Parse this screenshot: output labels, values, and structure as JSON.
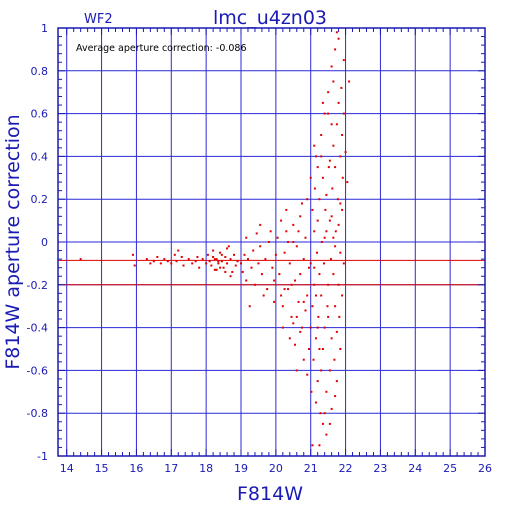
{
  "colors": {
    "axis": "#1a1ab4",
    "grid": "#2a2ad8",
    "points": "#e00000",
    "average_line": "#e00000",
    "annotation": "#000000"
  },
  "chart_data": {
    "type": "scatter",
    "title": "lmc_u4zn03",
    "subtitle": "WF2",
    "xlabel": "F814W",
    "ylabel": "F814W aperture correction",
    "annotation": "Average aperture correction:  -0.086",
    "xlim": [
      13.75,
      26
    ],
    "ylim": [
      -1,
      1
    ],
    "grid": true,
    "x_ticks": [
      "14",
      "15",
      "16",
      "17",
      "18",
      "19",
      "20",
      "21",
      "22",
      "23",
      "24",
      "25",
      "26"
    ],
    "y_ticks": [
      "1",
      "0.8",
      "0.6",
      "0.4",
      "0.2",
      "0",
      "-0.2",
      "-0.4",
      "-0.6",
      "-0.8",
      "-1"
    ],
    "reference_lines": [
      {
        "orientation": "horizontal",
        "y": -0.086
      },
      {
        "orientation": "horizontal",
        "y": -0.2
      }
    ],
    "series": [
      {
        "points": [
          [
            14.4,
            -0.08
          ],
          [
            15.9,
            -0.06
          ],
          [
            15.95,
            -0.11
          ],
          [
            16.3,
            -0.08
          ],
          [
            16.4,
            -0.1
          ],
          [
            16.5,
            -0.09
          ],
          [
            16.6,
            -0.07
          ],
          [
            16.7,
            -0.1
          ],
          [
            16.8,
            -0.08
          ],
          [
            16.9,
            -0.09
          ],
          [
            17.0,
            -0.1
          ],
          [
            17.1,
            -0.06
          ],
          [
            17.15,
            -0.09
          ],
          [
            17.2,
            -0.04
          ],
          [
            17.3,
            -0.07
          ],
          [
            17.35,
            -0.11
          ],
          [
            17.5,
            -0.08
          ],
          [
            17.6,
            -0.1
          ],
          [
            17.7,
            -0.09
          ],
          [
            17.75,
            -0.07
          ],
          [
            17.8,
            -0.12
          ],
          [
            17.9,
            -0.08
          ],
          [
            18.0,
            -0.1
          ],
          [
            18.05,
            -0.06
          ],
          [
            18.1,
            -0.09
          ],
          [
            18.15,
            -0.11
          ],
          [
            18.2,
            -0.07
          ],
          [
            18.25,
            -0.13
          ],
          [
            18.3,
            -0.08
          ],
          [
            18.35,
            -0.1
          ],
          [
            18.4,
            -0.05
          ],
          [
            18.45,
            -0.09
          ],
          [
            18.5,
            -0.12
          ],
          [
            18.55,
            -0.07
          ],
          [
            18.6,
            -0.1
          ],
          [
            18.7,
            -0.08
          ],
          [
            18.75,
            -0.14
          ],
          [
            18.8,
            -0.06
          ],
          [
            18.85,
            -0.11
          ],
          [
            18.9,
            -0.09
          ],
          [
            18.2,
            -0.04
          ],
          [
            18.3,
            -0.13
          ],
          [
            18.4,
            -0.12
          ],
          [
            18.6,
            -0.03
          ],
          [
            18.7,
            -0.16
          ],
          [
            18.35,
            -0.09
          ],
          [
            18.25,
            -0.08
          ],
          [
            18.45,
            -0.06
          ],
          [
            18.55,
            -0.14
          ],
          [
            18.65,
            -0.02
          ],
          [
            19.0,
            -0.1
          ],
          [
            19.05,
            -0.14
          ],
          [
            19.1,
            -0.06
          ],
          [
            19.15,
            -0.18
          ],
          [
            19.2,
            -0.08
          ],
          [
            19.3,
            -0.12
          ],
          [
            19.35,
            -0.04
          ],
          [
            19.4,
            -0.2
          ],
          [
            19.5,
            -0.1
          ],
          [
            19.55,
            -0.02
          ],
          [
            19.6,
            -0.15
          ],
          [
            19.7,
            -0.08
          ],
          [
            19.75,
            -0.22
          ],
          [
            19.8,
            0.0
          ],
          [
            19.9,
            -0.12
          ],
          [
            19.95,
            -0.28
          ],
          [
            20.0,
            -0.06
          ],
          [
            19.45,
            0.04
          ],
          [
            19.65,
            -0.25
          ],
          [
            19.85,
            0.05
          ],
          [
            19.25,
            -0.3
          ],
          [
            19.55,
            0.08
          ],
          [
            19.95,
            -0.18
          ],
          [
            20.05,
            0.02
          ],
          [
            19.15,
            0.02
          ],
          [
            20.1,
            -0.15
          ],
          [
            20.15,
            0.1
          ],
          [
            20.2,
            -0.3
          ],
          [
            20.25,
            -0.05
          ],
          [
            20.3,
            0.05
          ],
          [
            20.35,
            -0.22
          ],
          [
            20.4,
            -0.1
          ],
          [
            20.45,
            -0.35
          ],
          [
            20.5,
            0.08
          ],
          [
            20.55,
            -0.18
          ],
          [
            20.6,
            -0.02
          ],
          [
            20.65,
            -0.28
          ],
          [
            20.7,
            0.12
          ],
          [
            20.75,
            -0.4
          ],
          [
            20.8,
            -0.08
          ],
          [
            20.85,
            0.02
          ],
          [
            20.9,
            -0.25
          ],
          [
            20.95,
            -0.5
          ],
          [
            20.2,
            -0.4
          ],
          [
            20.3,
            0.15
          ],
          [
            20.4,
            -0.45
          ],
          [
            20.5,
            0.0
          ],
          [
            20.6,
            -0.35
          ],
          [
            20.7,
            -0.15
          ],
          [
            20.8,
            -0.55
          ],
          [
            20.9,
            0.2
          ],
          [
            20.45,
            -0.2
          ],
          [
            20.65,
            0.05
          ],
          [
            20.85,
            -0.32
          ],
          [
            20.55,
            -0.48
          ],
          [
            20.75,
            0.18
          ],
          [
            20.95,
            -0.12
          ],
          [
            20.25,
            -0.22
          ],
          [
            20.35,
            0.0
          ],
          [
            20.15,
            -0.25
          ],
          [
            20.6,
            -0.6
          ],
          [
            20.8,
            -0.28
          ],
          [
            20.9,
            -0.62
          ],
          [
            20.7,
            -0.42
          ],
          [
            20.5,
            -0.38
          ],
          [
            21.0,
            0.3
          ],
          [
            21.0,
            -0.1
          ],
          [
            21.02,
            -0.7
          ],
          [
            21.05,
            0.15
          ],
          [
            21.05,
            -0.3
          ],
          [
            21.08,
            -0.55
          ],
          [
            21.1,
            0.05
          ],
          [
            21.1,
            -0.2
          ],
          [
            21.12,
            0.25
          ],
          [
            21.15,
            -0.45
          ],
          [
            21.15,
            0.4
          ],
          [
            21.18,
            -0.05
          ],
          [
            21.2,
            -0.65
          ],
          [
            21.2,
            0.1
          ],
          [
            21.22,
            -0.35
          ],
          [
            21.25,
            0.2
          ],
          [
            21.25,
            -0.15
          ],
          [
            21.28,
            -0.8
          ],
          [
            21.3,
            0.5
          ],
          [
            21.3,
            -0.25
          ],
          [
            21.32,
            0.0
          ],
          [
            21.35,
            -0.5
          ],
          [
            21.35,
            0.3
          ],
          [
            21.38,
            -0.1
          ],
          [
            21.4,
            0.6
          ],
          [
            21.4,
            -0.4
          ],
          [
            21.42,
            0.15
          ],
          [
            21.45,
            -0.7
          ],
          [
            21.45,
            0.05
          ],
          [
            21.48,
            -0.3
          ],
          [
            21.5,
            0.7
          ],
          [
            21.5,
            -0.2
          ],
          [
            21.52,
            0.35
          ],
          [
            21.55,
            -0.6
          ],
          [
            21.55,
            0.1
          ],
          [
            21.58,
            -0.08
          ],
          [
            21.6,
            0.82
          ],
          [
            21.6,
            -0.45
          ],
          [
            21.62,
            0.25
          ],
          [
            21.65,
            -0.15
          ],
          [
            21.65,
            0.45
          ],
          [
            21.68,
            -0.55
          ],
          [
            21.7,
            0.9
          ],
          [
            21.7,
            -0.3
          ],
          [
            21.72,
            0.05
          ],
          [
            21.75,
            0.55
          ],
          [
            21.75,
            -0.65
          ],
          [
            21.78,
            0.2
          ],
          [
            21.8,
            -0.2
          ],
          [
            21.8,
            0.65
          ],
          [
            21.82,
            -0.35
          ],
          [
            21.85,
            0.4
          ],
          [
            21.85,
            -0.05
          ],
          [
            21.88,
            0.72
          ],
          [
            21.9,
            -0.25
          ],
          [
            21.9,
            0.15
          ],
          [
            21.92,
            0.3
          ],
          [
            21.95,
            0.85
          ],
          [
            21.95,
            -0.1
          ],
          [
            22.0,
            0.42
          ],
          [
            22.05,
            0.28
          ],
          [
            22.1,
            0.75
          ],
          [
            21.8,
            0.95
          ],
          [
            21.75,
            0.98
          ],
          [
            21.65,
            0.75
          ],
          [
            21.55,
            -0.85
          ],
          [
            21.45,
            -0.9
          ],
          [
            21.35,
            -0.85
          ],
          [
            21.25,
            -0.95
          ],
          [
            21.15,
            -0.75
          ],
          [
            21.05,
            -0.95
          ],
          [
            21.4,
            -0.8
          ],
          [
            21.6,
            -0.78
          ],
          [
            21.7,
            -0.72
          ],
          [
            21.85,
            -0.5
          ],
          [
            21.5,
            0.6
          ],
          [
            21.3,
            0.4
          ],
          [
            21.2,
            0.35
          ],
          [
            21.1,
            0.45
          ],
          [
            21.35,
            0.65
          ],
          [
            21.6,
            0.55
          ],
          [
            21.9,
            0.5
          ],
          [
            21.7,
            0.35
          ],
          [
            21.2,
            -0.4
          ],
          [
            21.3,
            -0.6
          ],
          [
            21.4,
            0.02
          ],
          [
            21.5,
            -0.35
          ],
          [
            21.6,
            0.12
          ],
          [
            21.7,
            -0.02
          ],
          [
            21.8,
            0.08
          ],
          [
            21.1,
            -0.12
          ],
          [
            21.25,
            -0.5
          ],
          [
            21.45,
            0.22
          ],
          [
            21.55,
            0.38
          ],
          [
            21.65,
            0.02
          ],
          [
            21.75,
            -0.42
          ],
          [
            21.85,
            0.18
          ],
          [
            21.95,
            0.6
          ],
          [
            21.0,
            -0.4
          ],
          [
            21.15,
            -0.25
          ]
        ]
      }
    ]
  }
}
